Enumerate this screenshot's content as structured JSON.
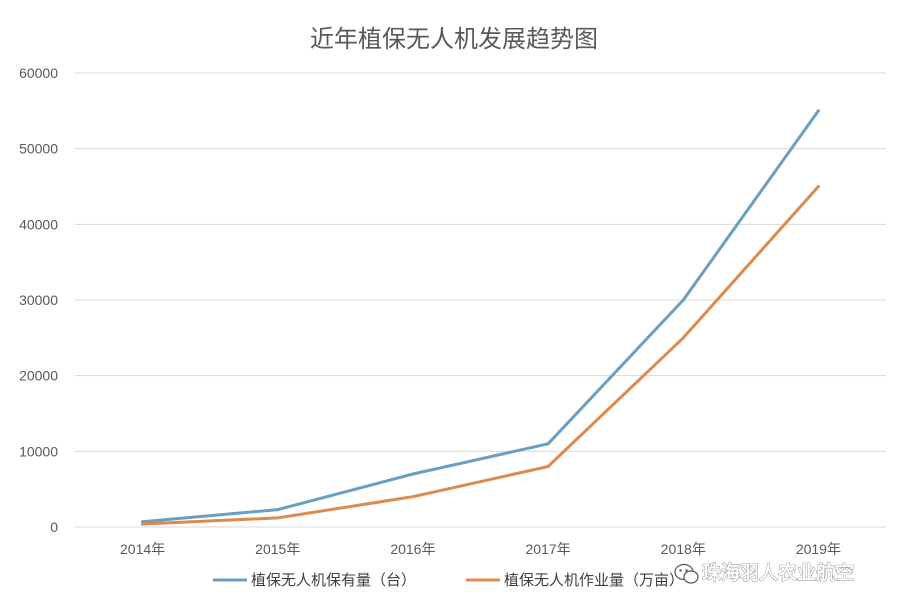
{
  "chart_data": {
    "type": "line",
    "title": "近年植保无人机发展趋势图",
    "categories": [
      "2014年",
      "2015年",
      "2016年",
      "2017年",
      "2018年",
      "2019年"
    ],
    "ylim": [
      0,
      60000
    ],
    "yticks": [
      0,
      10000,
      20000,
      30000,
      40000,
      50000,
      60000
    ],
    "grid": true,
    "legend_position": "bottom",
    "series": [
      {
        "name": "植保无人机保有量（台）",
        "color": "#6a9ec2",
        "values": [
          700,
          2300,
          7000,
          11000,
          30000,
          55000
        ]
      },
      {
        "name": "植保无人机作业量（万亩）",
        "color": "#dc8a4e",
        "values": [
          400,
          1200,
          4000,
          8000,
          25000,
          45000
        ]
      }
    ]
  },
  "watermark": {
    "text": "珠海羽人农业航空",
    "icon": "wechat-icon"
  }
}
